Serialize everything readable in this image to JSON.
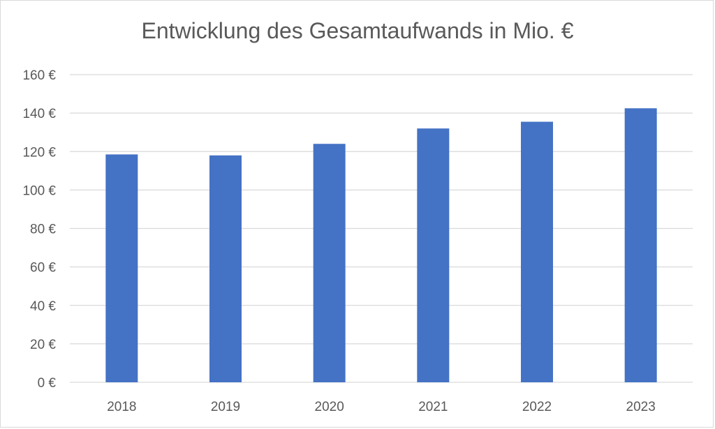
{
  "chart_data": {
    "type": "bar",
    "title": "Entwicklung des Gesamtaufwands in Mio. €",
    "categories": [
      "2018",
      "2019",
      "2020",
      "2021",
      "2022",
      "2023"
    ],
    "values": [
      118.5,
      118,
      124,
      132,
      135.5,
      142.5
    ],
    "ylim": [
      0,
      160
    ],
    "y_ticks": [
      0,
      20,
      40,
      60,
      80,
      100,
      120,
      140,
      160
    ],
    "y_tick_labels": [
      "0 €",
      "20 €",
      "40 €",
      "60 €",
      "80 €",
      "100 €",
      "120 €",
      "140 €",
      "160 €"
    ],
    "xlabel": "",
    "ylabel": "",
    "grid": true,
    "legend": "none",
    "colors": {
      "bar": "#4472c4",
      "gridline": "#d9d9d9",
      "text": "#595959"
    }
  }
}
